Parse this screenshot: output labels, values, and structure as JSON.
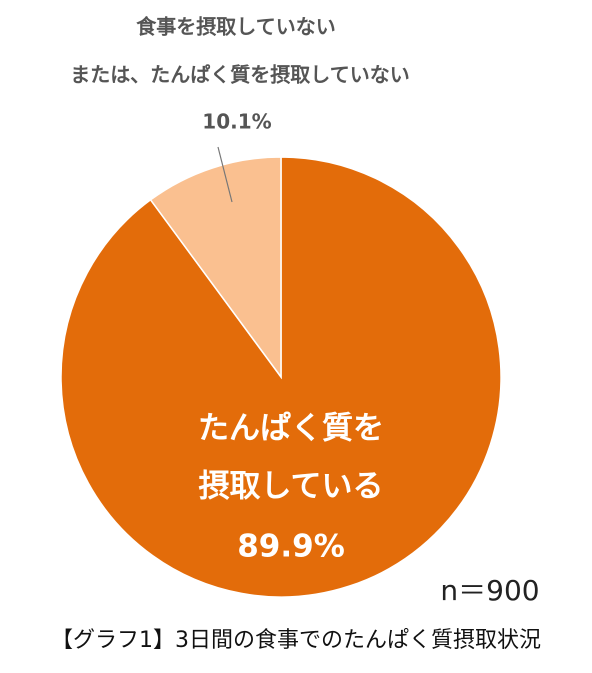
{
  "chart_data": {
    "type": "pie",
    "categories": [
      [
        "たんぱく質を",
        "摂取している"
      ],
      [
        "食事を摂取していない",
        "または、たんぱく質を摂取していない"
      ]
    ],
    "values": [
      89.9,
      10.1
    ],
    "value_labels": [
      "89.9%",
      "10.1%"
    ],
    "colors": [
      "#e36c0a",
      "#fac090"
    ],
    "note": "n＝900",
    "caption": "【グラフ1】3日間の食事でのたんぱく質摂取状況"
  }
}
